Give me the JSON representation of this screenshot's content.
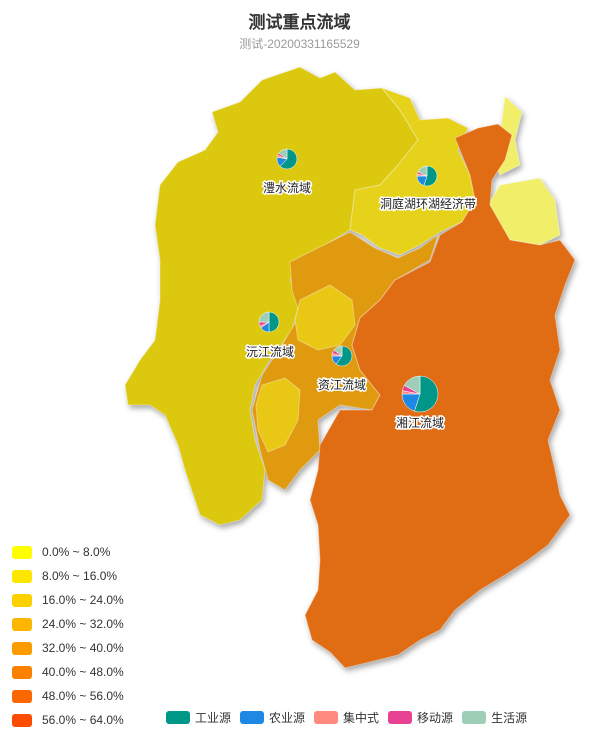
{
  "header": {
    "title": "测试重点流域",
    "subtitle": "测试-20200331165529"
  },
  "visual_map": {
    "ranges": [
      {
        "label": "0.0% ~ 8.0%",
        "color": "#ffff00"
      },
      {
        "label": "8.0% ~ 16.0%",
        "color": "#fde600"
      },
      {
        "label": "16.0% ~ 24.0%",
        "color": "#fdd100"
      },
      {
        "label": "24.0% ~ 32.0%",
        "color": "#fcb600"
      },
      {
        "label": "32.0% ~ 40.0%",
        "color": "#fc9c00"
      },
      {
        "label": "40.0% ~ 48.0%",
        "color": "#fb8100"
      },
      {
        "label": "48.0% ~ 56.0%",
        "color": "#fb6700"
      },
      {
        "label": "56.0% ~ 64.0%",
        "color": "#fb4c00"
      }
    ]
  },
  "pie_legend": [
    {
      "label": "工业源",
      "color": "#009688"
    },
    {
      "label": "农业源",
      "color": "#1e88e5"
    },
    {
      "label": "集中式",
      "color": "#ff8a80"
    },
    {
      "label": "移动源",
      "color": "#e84393"
    },
    {
      "label": "生活源",
      "color": "#9ecfb6"
    }
  ],
  "map": {
    "colors": {
      "west": "#dcc80e",
      "northwest": "#dcca10",
      "northeast": "#e6d21a",
      "light": "#f1ef6a",
      "central": "#e09a10",
      "east": "#e06c14",
      "mid_yellow": "#e8c815"
    },
    "basins": [
      {
        "name": "澧水流域",
        "share": [
          0.62,
          0.16,
          0.03,
          0.04,
          0.15
        ],
        "size": "small"
      },
      {
        "name": "洞庭湖环湖经济带",
        "share": [
          0.55,
          0.2,
          0.03,
          0.04,
          0.18
        ],
        "size": "small"
      },
      {
        "name": "沅江流域",
        "share": [
          0.5,
          0.15,
          0.03,
          0.07,
          0.25
        ],
        "size": "small"
      },
      {
        "name": "资江流域",
        "share": [
          0.6,
          0.15,
          0.04,
          0.06,
          0.15
        ],
        "size": "small"
      },
      {
        "name": "湘江流域",
        "share": [
          0.55,
          0.2,
          0.03,
          0.05,
          0.17
        ],
        "size": "large"
      }
    ]
  }
}
